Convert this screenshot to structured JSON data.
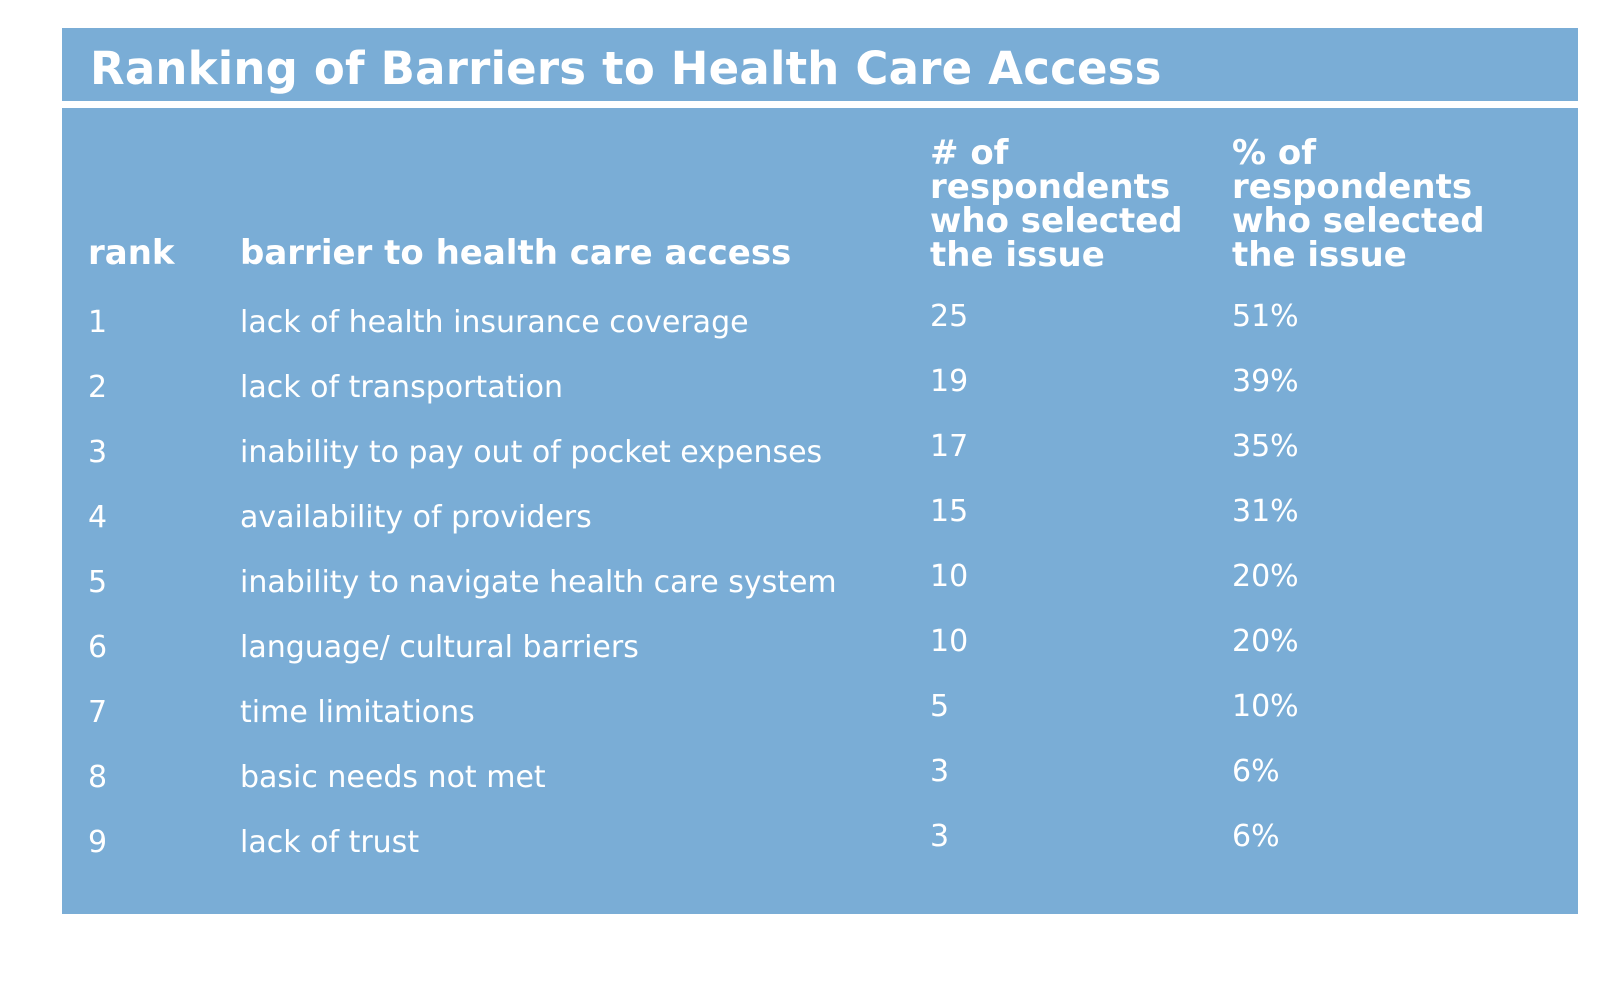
{
  "title": "Ranking of Barriers to Health Care Access",
  "headers": {
    "rank": "rank",
    "barrier": "barrier to health care access",
    "count_lines": [
      "# of",
      "respondents",
      "who selected",
      "the issue"
    ],
    "pct_lines": [
      "% of",
      "respondents",
      "who selected",
      "the issue"
    ]
  },
  "rows": [
    {
      "rank": "1",
      "barrier": "lack of health insurance coverage",
      "count": "25",
      "pct": "51%"
    },
    {
      "rank": "2",
      "barrier": "lack of transportation",
      "count": "19",
      "pct": "39%"
    },
    {
      "rank": "3",
      "barrier": "inability to pay out of pocket expenses",
      "count": "17",
      "pct": "35%"
    },
    {
      "rank": "4",
      "barrier": "availability of providers",
      "count": "15",
      "pct": "31%"
    },
    {
      "rank": "5",
      "barrier": "inability to navigate health care system",
      "count": "10",
      "pct": "20%"
    },
    {
      "rank": "6",
      "barrier": "language/ cultural barriers",
      "count": "10",
      "pct": "20%"
    },
    {
      "rank": "7",
      "barrier": "time limitations",
      "count": "5",
      "pct": "10%"
    },
    {
      "rank": "8",
      "barrier": "basic needs not met",
      "count": "3",
      "pct": "6%"
    },
    {
      "rank": "9",
      "barrier": "lack of trust",
      "count": "3",
      "pct": "6%"
    }
  ],
  "colors": {
    "panel": "#7aadd6",
    "text": "#ffffff"
  }
}
